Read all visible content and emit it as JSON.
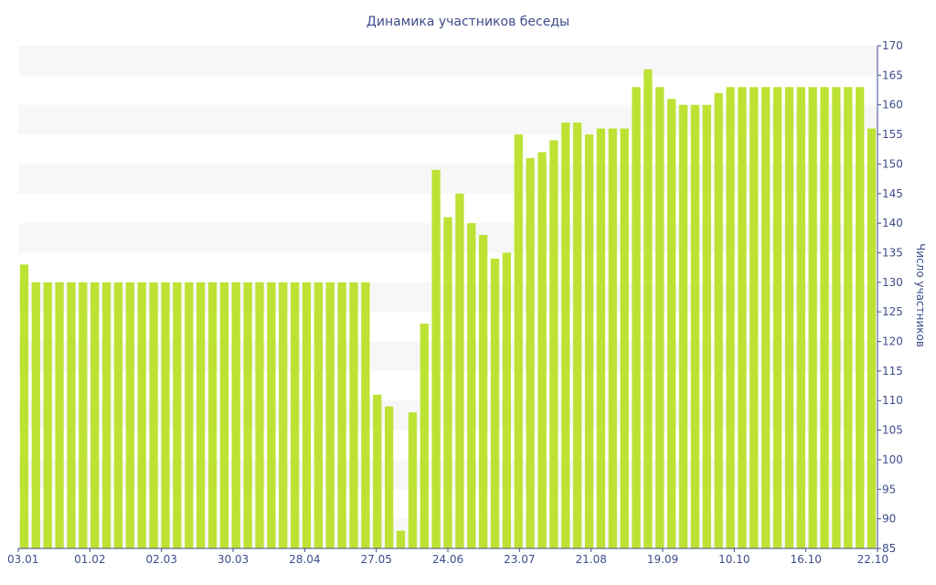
{
  "chart_data": {
    "type": "bar",
    "title": "Динамика участников беседы",
    "xlabel": "",
    "ylabel": "Число участников",
    "ylim": [
      85,
      170
    ],
    "yticks": [
      85,
      90,
      95,
      100,
      105,
      110,
      115,
      120,
      125,
      130,
      135,
      140,
      145,
      150,
      155,
      160,
      165,
      170
    ],
    "x_tick_labels": [
      "03.01",
      "01.02",
      "02.03",
      "30.03",
      "28.04",
      "27.05",
      "24.06",
      "23.07",
      "21.08",
      "19.09",
      "10.10",
      "16.10",
      "22.10"
    ],
    "y_axis_side": "right",
    "grid": "alternating-bands",
    "legend": "none",
    "bar_color": "#bde234",
    "values": [
      133,
      130,
      130,
      130,
      130,
      130,
      130,
      130,
      130,
      130,
      130,
      130,
      130,
      130,
      130,
      130,
      130,
      130,
      130,
      130,
      130,
      130,
      130,
      130,
      130,
      130,
      130,
      130,
      130,
      130,
      111,
      109,
      88,
      108,
      123,
      149,
      141,
      145,
      140,
      138,
      134,
      135,
      155,
      151,
      152,
      154,
      157,
      157,
      155,
      156,
      156,
      156,
      163,
      166,
      163,
      161,
      160,
      160,
      160,
      162,
      163,
      163,
      163,
      163,
      163,
      163,
      163,
      163,
      163,
      163,
      163,
      163,
      156
    ]
  }
}
